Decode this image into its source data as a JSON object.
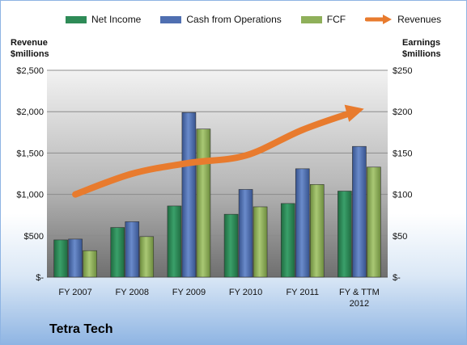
{
  "company": "Tetra Tech",
  "legend": [
    {
      "label": "Net Income",
      "color": "#2e8b57",
      "kind": "bar"
    },
    {
      "label": "Cash from Operations",
      "color": "#4f6fb1",
      "kind": "bar"
    },
    {
      "label": "FCF",
      "color": "#8fb05a",
      "kind": "bar"
    },
    {
      "label": "Revenues",
      "color": "#e87b2e",
      "kind": "arrow"
    }
  ],
  "chart_data": {
    "type": "bar",
    "left_axis_title": [
      "Revenue",
      "$millions"
    ],
    "right_axis_title": [
      "Earnings",
      "$millions"
    ],
    "categories": [
      [
        "FY 2007"
      ],
      [
        "FY 2008"
      ],
      [
        "FY 2009"
      ],
      [
        "FY 2010"
      ],
      [
        "FY 2011"
      ],
      [
        "FY & TTM",
        "2012"
      ]
    ],
    "left_ticks": [
      "$-",
      "$500",
      "$1,000",
      "$1,500",
      "$2,000",
      "$2,500"
    ],
    "right_ticks": [
      "$-",
      "$50",
      "$100",
      "$150",
      "$200",
      "$250"
    ],
    "left_ylim": [
      0,
      2500
    ],
    "right_ylim": [
      0,
      250
    ],
    "series": [
      {
        "name": "Net Income",
        "color": "#2e8b57",
        "axis": "right",
        "values": [
          45,
          60,
          86,
          76,
          89,
          104
        ]
      },
      {
        "name": "Cash from Operations",
        "color": "#4f6fb1",
        "axis": "right",
        "values": [
          46,
          67,
          199,
          106,
          131,
          158
        ]
      },
      {
        "name": "FCF",
        "color": "#8fb05a",
        "axis": "right",
        "values": [
          32,
          49,
          179,
          85,
          112,
          133
        ]
      }
    ],
    "revenue_series": {
      "name": "Revenues",
      "color": "#e87b2e",
      "axis": "left",
      "style": "smooth-arrow",
      "values": [
        1000,
        1250,
        1380,
        1470,
        1780,
        2020
      ]
    },
    "grid": true
  }
}
